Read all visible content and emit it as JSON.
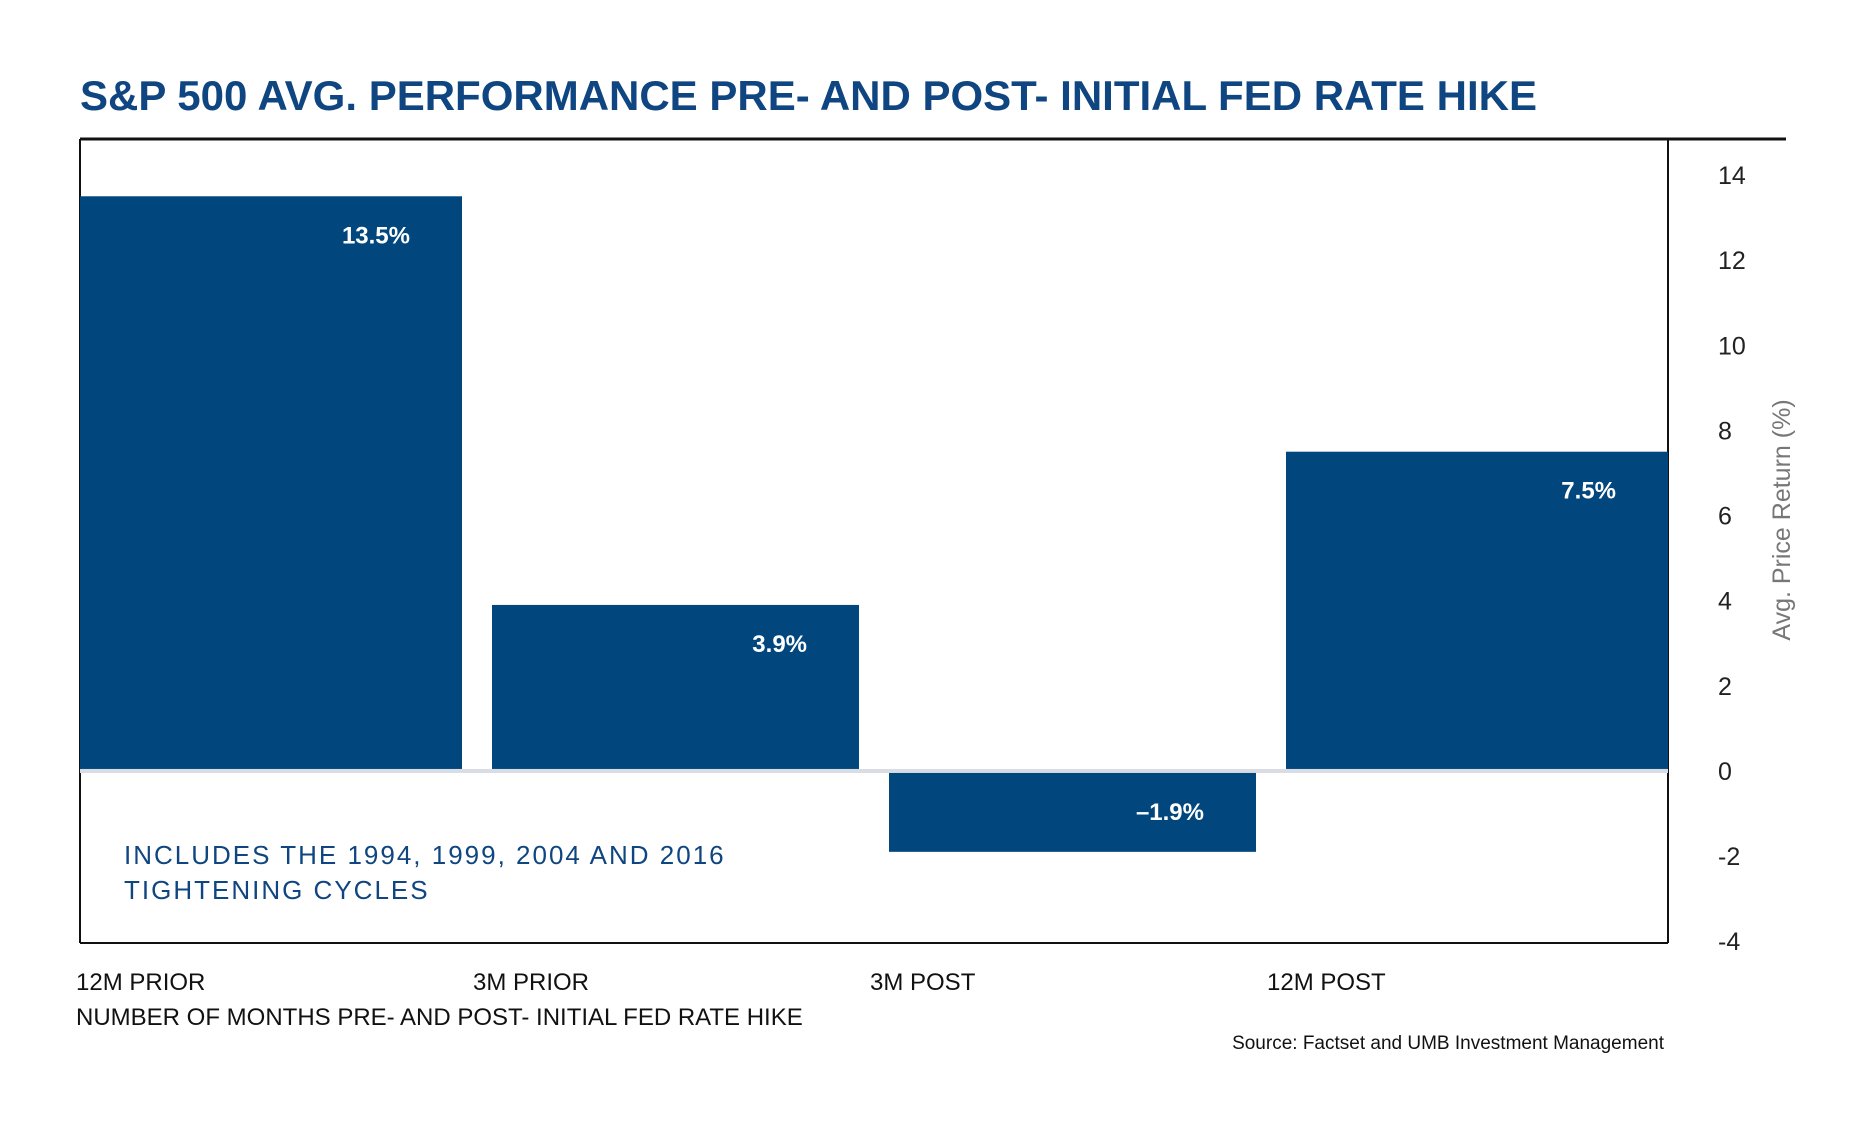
{
  "colors": {
    "title": "#0f4580",
    "bar": "#01477e",
    "note": "#0f4580",
    "zero_line": "#d9dde3",
    "frame": "#111111"
  },
  "chart_data": {
    "type": "bar",
    "title": "S&P 500 AVG. PERFORMANCE PRE- AND POST- INITIAL FED RATE HIKE",
    "categories": [
      "12M PRIOR",
      "3M PRIOR",
      "3M POST",
      "12M POST"
    ],
    "values": [
      13.5,
      3.9,
      -1.9,
      7.5
    ],
    "data_labels": [
      "13.5%",
      "3.9%",
      "–1.9%",
      "7.5%"
    ],
    "xlabel": "NUMBER OF MONTHS PRE- AND POST- INITIAL FED RATE HIKE",
    "ylabel": "Avg. Price Return (%)",
    "ylim": [
      -4,
      14
    ],
    "yticks": [
      14,
      12,
      10,
      8,
      6,
      4,
      2,
      0,
      -2,
      -4
    ],
    "y_axis_side": "right",
    "grid": false,
    "legend": "none",
    "annotation": [
      "INCLUDES THE 1994, 1999, 2004 AND 2016",
      "TIGHTENING CYCLES"
    ],
    "source": "Source: Factset and UMB Investment Management"
  }
}
